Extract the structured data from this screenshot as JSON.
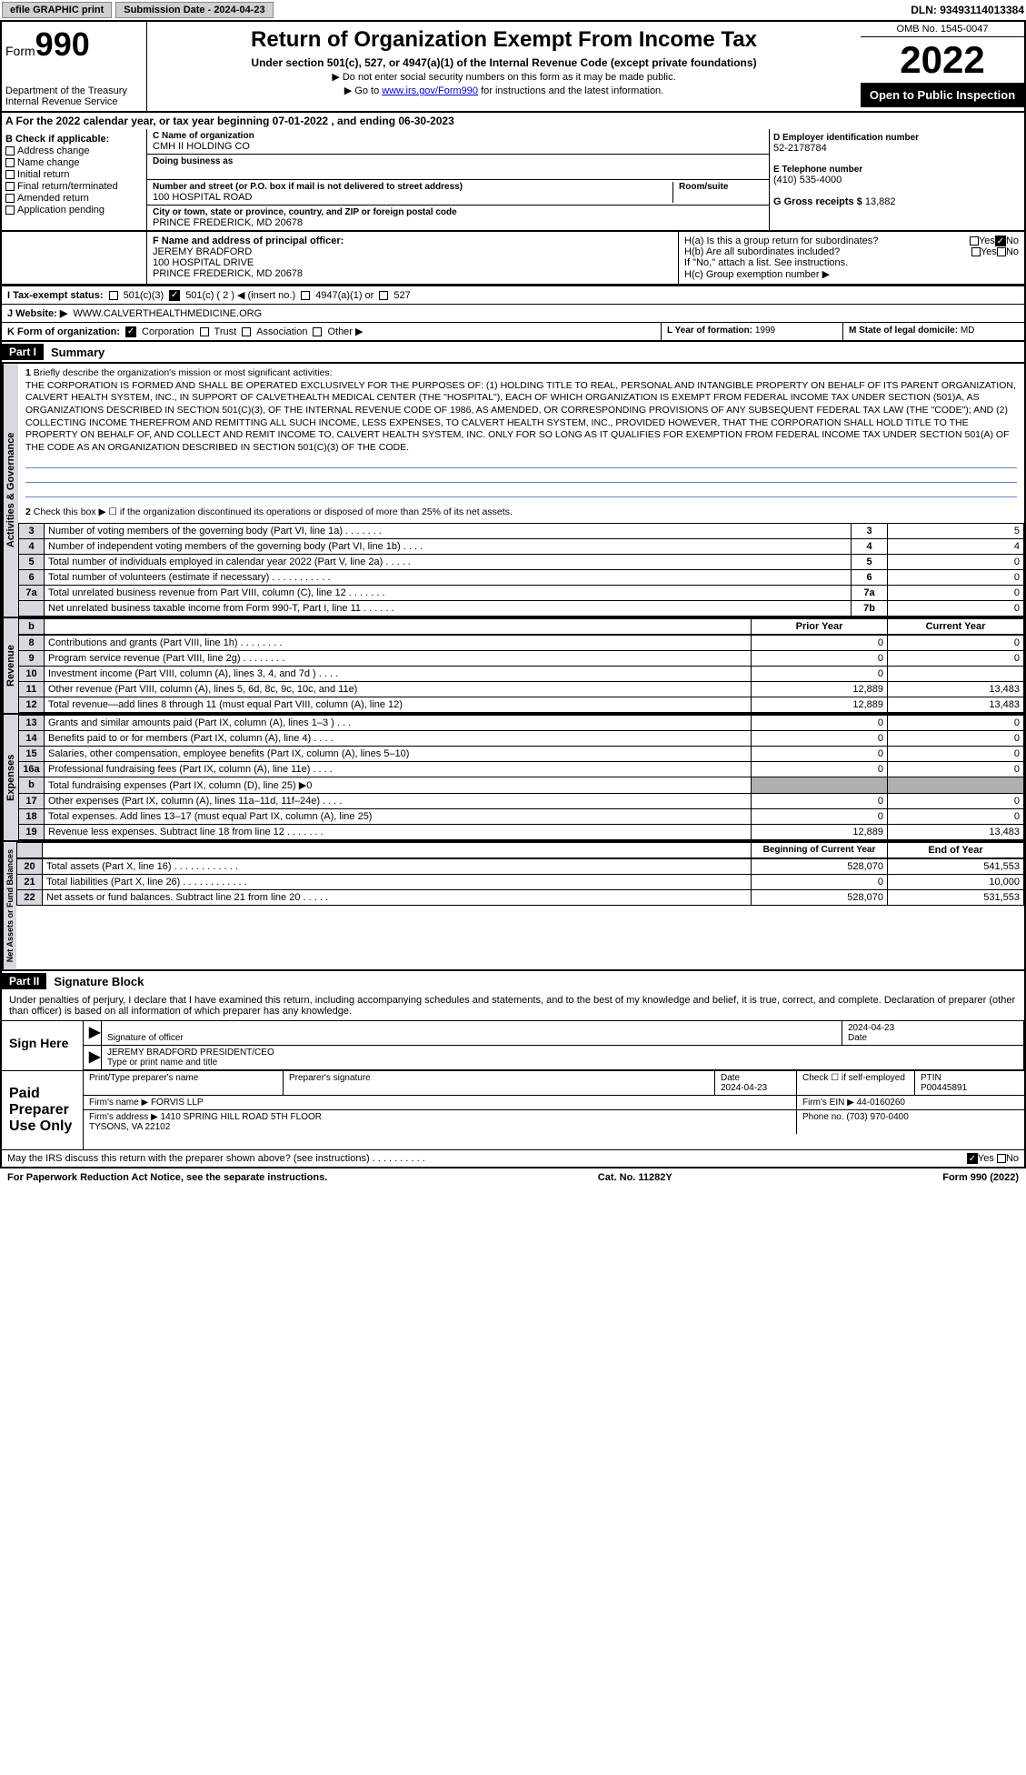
{
  "top": {
    "efile": "efile GRAPHIC print",
    "submission_label": "Submission Date - 2024-04-23",
    "dln": "DLN: 93493114013384"
  },
  "header": {
    "form_label": "Form",
    "form_number": "990",
    "dept": "Department of the Treasury Internal Revenue Service",
    "title": "Return of Organization Exempt From Income Tax",
    "subtitle": "Under section 501(c), 527, or 4947(a)(1) of the Internal Revenue Code (except private foundations)",
    "note1": "▶ Do not enter social security numbers on this form as it may be made public.",
    "note2_pre": "▶ Go to ",
    "note2_link": "www.irs.gov/Form990",
    "note2_post": " for instructions and the latest information.",
    "omb": "OMB No. 1545-0047",
    "year": "2022",
    "inspect": "Open to Public Inspection"
  },
  "sectionA": "A For the 2022 calendar year, or tax year beginning 07-01-2022   , and ending 06-30-2023",
  "B": {
    "label": "B Check if applicable:",
    "items": [
      "Address change",
      "Name change",
      "Initial return",
      "Final return/terminated",
      "Amended return",
      "Application pending"
    ]
  },
  "C": {
    "name_label": "C Name of organization",
    "name": "CMH II HOLDING CO",
    "dba_label": "Doing business as",
    "dba": "",
    "street_label": "Number and street (or P.O. box if mail is not delivered to street address)",
    "street": "100 HOSPITAL ROAD",
    "room_label": "Room/suite",
    "city_label": "City or town, state or province, country, and ZIP or foreign postal code",
    "city": "PRINCE FREDERICK, MD  20678"
  },
  "D": {
    "label": "D Employer identification number",
    "value": "52-2178784"
  },
  "E": {
    "label": "E Telephone number",
    "value": "(410) 535-4000"
  },
  "G": {
    "label": "G Gross receipts $",
    "value": "13,882"
  },
  "F": {
    "label": "F  Name and address of principal officer:",
    "name": "JEREMY BRADFORD",
    "street": "100 HOSPITAL DRIVE",
    "city": "PRINCE FREDERICK, MD  20678"
  },
  "H": {
    "a_label": "H(a)  Is this a group return for subordinates?",
    "b_label": "H(b)  Are all subordinates included?",
    "b_note": "If \"No,\" attach a list. See instructions.",
    "c_label": "H(c)  Group exemption number ▶",
    "yes": "Yes",
    "no": "No"
  },
  "I": {
    "label": "I   Tax-exempt status:",
    "opt1": "501(c)(3)",
    "opt2": "501(c) ( 2 ) ◀ (insert no.)",
    "opt3": "4947(a)(1) or",
    "opt4": "527"
  },
  "J": {
    "label": "J   Website: ▶",
    "value": "WWW.CALVERTHEALTHMEDICINE.ORG"
  },
  "K": {
    "label": "K Form of organization:",
    "corp": "Corporation",
    "trust": "Trust",
    "assoc": "Association",
    "other": "Other ▶"
  },
  "L": {
    "label": "L Year of formation:",
    "value": "1999"
  },
  "M": {
    "label": "M State of legal domicile:",
    "value": "MD"
  },
  "part1": {
    "label": "Part I",
    "title": "Summary"
  },
  "summary": {
    "line1_label": "Briefly describe the organization's mission or most significant activities:",
    "mission": "THE CORPORATION IS FORMED AND SHALL BE OPERATED EXCLUSIVELY FOR THE PURPOSES OF: (1) HOLDING TITLE TO REAL, PERSONAL AND INTANGIBLE PROPERTY ON BEHALF OF ITS PARENT ORGANIZATION, CALVERT HEALTH SYSTEM, INC., IN SUPPORT OF CALVETHEALTH MEDICAL CENTER (THE \"HOSPITAL\"), EACH OF WHICH ORGANIZATION IS EXEMPT FROM FEDERAL INCOME TAX UNDER SECTION (501)A, AS ORGANIZATIONS DESCRIBED IN SECTION 501(C)(3), OF THE INTERNAL REVENUE CODE OF 1986, AS AMENDED, OR CORRESPONDING PROVISIONS OF ANY SUBSEQUENT FEDERAL TAX LAW (THE \"CODE\"); AND (2) COLLECTING INCOME THEREFROM AND REMITTING ALL SUCH INCOME, LESS EXPENSES, TO CALVERT HEALTH SYSTEM, INC., PROVIDED HOWEVER, THAT THE CORPORATION SHALL HOLD TITLE TO THE PROPERTY ON BEHALF OF, AND COLLECT AND REMIT INCOME TO, CALVERT HEALTH SYSTEM, INC. ONLY FOR SO LONG AS IT QUALIFIES FOR EXEMPTION FROM FEDERAL INCOME TAX UNDER SECTION 501(A) OF THE CODE AS AN ORGANIZATION DESCRIBED IN SECTION 501(C)(3) OF THE CODE.",
    "line2": "Check this box ▶ ☐ if the organization discontinued its operations or disposed of more than 25% of its net assets.",
    "lines": [
      {
        "n": "3",
        "text": "Number of voting members of the governing body (Part VI, line 1a)  .    .    .    .    .    .    .",
        "box": "3",
        "val": "5"
      },
      {
        "n": "4",
        "text": "Number of independent voting members of the governing body (Part VI, line 1b)   .    .    .    .",
        "box": "4",
        "val": "4"
      },
      {
        "n": "5",
        "text": "Total number of individuals employed in calendar year 2022 (Part V, line 2a)   .    .    .    .    .",
        "box": "5",
        "val": "0"
      },
      {
        "n": "6",
        "text": "Total number of volunteers (estimate if necessary)  .    .    .    .    .    .    .    .    .    .    .",
        "box": "6",
        "val": "0"
      },
      {
        "n": "7a",
        "text": "Total unrelated business revenue from Part VIII, column (C), line 12   .    .    .    .    .    .    .",
        "box": "7a",
        "val": "0"
      },
      {
        "n": "",
        "text": "Net unrelated business taxable income from Form 990-T, Part I, line 11   .    .    .    .    .    .",
        "box": "7b",
        "val": "0"
      }
    ],
    "col_prior": "Prior Year",
    "col_current": "Current Year",
    "revenue": [
      {
        "n": "8",
        "text": "Contributions and grants (Part VIII, line 1h)   .    .    .    .    .    .    .    .",
        "p": "0",
        "c": "0"
      },
      {
        "n": "9",
        "text": "Program service revenue (Part VIII, line 2g)    .    .    .    .    .    .    .    .",
        "p": "0",
        "c": "0"
      },
      {
        "n": "10",
        "text": "Investment income (Part VIII, column (A), lines 3, 4, and 7d )   .    .    .    .",
        "p": "0",
        "c": ""
      },
      {
        "n": "11",
        "text": "Other revenue (Part VIII, column (A), lines 5, 6d, 8c, 9c, 10c, and 11e)",
        "p": "12,889",
        "c": "13,483"
      },
      {
        "n": "12",
        "text": "Total revenue—add lines 8 through 11 (must equal Part VIII, column (A), line 12)",
        "p": "12,889",
        "c": "13,483"
      }
    ],
    "expenses": [
      {
        "n": "13",
        "text": "Grants and similar amounts paid (Part IX, column (A), lines 1–3 ) .    .    .",
        "p": "0",
        "c": "0"
      },
      {
        "n": "14",
        "text": "Benefits paid to or for members (Part IX, column (A), line 4)   .    .    .    .",
        "p": "0",
        "c": "0"
      },
      {
        "n": "15",
        "text": "Salaries, other compensation, employee benefits (Part IX, column (A), lines 5–10)",
        "p": "0",
        "c": "0"
      },
      {
        "n": "16a",
        "text": "Professional fundraising fees (Part IX, column (A), line 11e)   .    .    .    .",
        "p": "0",
        "c": "0"
      },
      {
        "n": "b",
        "text": "Total fundraising expenses (Part IX, column (D), line 25) ▶0",
        "p": "GRAY",
        "c": "GRAY"
      },
      {
        "n": "17",
        "text": "Other expenses (Part IX, column (A), lines 11a–11d, 11f–24e)   .    .    .    .",
        "p": "0",
        "c": "0"
      },
      {
        "n": "18",
        "text": "Total expenses. Add lines 13–17 (must equal Part IX, column (A), line 25)",
        "p": "0",
        "c": "0"
      },
      {
        "n": "19",
        "text": "Revenue less expenses. Subtract line 18 from line 12 .    .    .    .    .    .    .",
        "p": "12,889",
        "c": "13,483"
      }
    ],
    "col_begin": "Beginning of Current Year",
    "col_end": "End of Year",
    "netassets": [
      {
        "n": "20",
        "text": "Total assets (Part X, line 16)   .    .    .    .    .    .    .    .    .    .    .    .",
        "p": "528,070",
        "c": "541,553"
      },
      {
        "n": "21",
        "text": "Total liabilities (Part X, line 26)  .    .    .    .    .    .    .    .    .    .    .    .",
        "p": "0",
        "c": "10,000"
      },
      {
        "n": "22",
        "text": "Net assets or fund balances. Subtract line 21 from line 20 .    .    .    .    .",
        "p": "528,070",
        "c": "531,553"
      }
    ],
    "side_gov": "Activities & Governance",
    "side_rev": "Revenue",
    "side_exp": "Expenses",
    "side_net": "Net Assets or Fund Balances"
  },
  "part2": {
    "label": "Part II",
    "title": "Signature Block"
  },
  "sig": {
    "penalty": "Under penalties of perjury, I declare that I have examined this return, including accompanying schedules and statements, and to the best of my knowledge and belief, it is true, correct, and complete. Declaration of preparer (other than officer) is based on all information of which preparer has any knowledge.",
    "sign_here": "Sign Here",
    "sig_officer": "Signature of officer",
    "date": "Date",
    "sig_date": "2024-04-23",
    "officer_name": "JEREMY BRADFORD PRESIDENT/CEO",
    "type_name": "Type or print name and title",
    "paid": "Paid Preparer Use Only",
    "prep_name_label": "Print/Type preparer's name",
    "prep_sig_label": "Preparer's signature",
    "prep_date_label": "Date",
    "prep_date": "2024-04-23",
    "check_self": "Check ☐ if self-employed",
    "ptin_label": "PTIN",
    "ptin": "P00445891",
    "firm_name_label": "Firm's name    ▶",
    "firm_name": "FORVIS LLP",
    "firm_ein_label": "Firm's EIN ▶",
    "firm_ein": "44-0160260",
    "firm_addr_label": "Firm's address ▶",
    "firm_addr1": "1410 SPRING HILL ROAD 5TH FLOOR",
    "firm_addr2": "TYSONS, VA  22102",
    "phone_label": "Phone no.",
    "phone": "(703) 970-0400",
    "discuss": "May the IRS discuss this return with the preparer shown above? (see instructions)   .    .    .    .    .    .    .    .    .    .",
    "yes": "Yes",
    "no": "No"
  },
  "footer": {
    "left": "For Paperwork Reduction Act Notice, see the separate instructions.",
    "mid": "Cat. No. 11282Y",
    "right": "Form 990 (2022)"
  }
}
